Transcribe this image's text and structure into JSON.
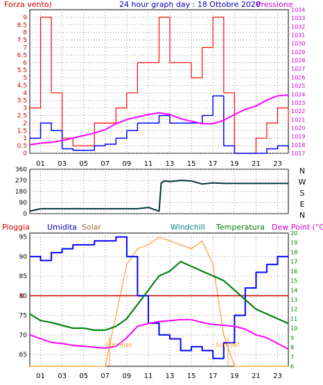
{
  "header": {
    "left_label": "Forza vento)",
    "title": "24 hour graph day : 18 Ottobre 2020",
    "right_label": "Pressione"
  },
  "colors": {
    "wind": "#ff0000",
    "wind_avg": "#0000ff",
    "pressure": "#ff00ff",
    "direction": "#003333",
    "humidity": "#0000ff",
    "solar": "#ff9933",
    "windchill": "#008080",
    "temperature": "#008000",
    "dewpoint": "#ff00ff",
    "rain": "#cc0000",
    "frame": "#000000",
    "grid": "#888888",
    "left_axis": "#cc0000",
    "right_axis_top": "#cc00cc",
    "right_axis_bottom": "#008000",
    "sun_label": "#ff9933"
  },
  "x_ticks": [
    "01",
    "03",
    "05",
    "07",
    "09",
    "11",
    "13",
    "15",
    "17",
    "19",
    "21",
    "23"
  ],
  "panel2": {
    "y_ticks": [
      "360",
      "270",
      "180",
      "90",
      "0"
    ],
    "compass": [
      "N",
      "W",
      "S",
      "E",
      "N"
    ]
  },
  "legend": {
    "rain": "Pioggia",
    "humidity": "Umidita",
    "solar": "Solar",
    "windchill": "Windchill",
    "temperature": "Temperatura",
    "dewpoint": "Dew Point (°C)"
  },
  "annotations": {
    "sunrise": "Sun Rise",
    "sunset": "Sun Set"
  },
  "chart_data": [
    {
      "type": "line",
      "title": "24 hour graph day : 18 Ottobre 2020",
      "ylabel_left": "Forza vento)",
      "ylabel_right": "Pressione",
      "x_hours": [
        0,
        1,
        2,
        3,
        4,
        5,
        6,
        7,
        8,
        9,
        10,
        11,
        12,
        13,
        14,
        15,
        16,
        17,
        18,
        19,
        20,
        21,
        22,
        23,
        24
      ],
      "ylim_left": [
        0,
        9.5
      ],
      "yticks_left": [
        "0",
        "0.5",
        "1",
        "1.5",
        "2",
        "2.5",
        "3",
        "3.5",
        "4",
        "4.5",
        "5",
        "5.5",
        "6",
        "6.5",
        "7",
        "7.5",
        "8",
        "8.5",
        "9"
      ],
      "ylim_right": [
        1017,
        1034
      ],
      "yticks_right": [
        "1017",
        "1017.5",
        "1018",
        "1018.5",
        "1019",
        "1019.5",
        "1020",
        "1020.5",
        "1021",
        "1021.5",
        "1022",
        "1022.5",
        "1023",
        "1023.5",
        "1024",
        "1024.5",
        "1025",
        "1025.5",
        "1026",
        "1026.5",
        "1027",
        "1027.5",
        "1028",
        "1028.5",
        "1029",
        "1029.5",
        "1030",
        "1030.5",
        "1031",
        "1031.5",
        "1032",
        "1032.5",
        "1033",
        "1033.5",
        "1034"
      ],
      "series": [
        {
          "name": "Forza vento)",
          "values": [
            3,
            9,
            4,
            1,
            0.5,
            0.5,
            2,
            2,
            3,
            4,
            6,
            6,
            9,
            6,
            6,
            5,
            7,
            9,
            4,
            0,
            0,
            1,
            2,
            3,
            2
          ]
        },
        {
          "values": [
            1,
            2,
            1.5,
            0.3,
            0.2,
            0.2,
            0.5,
            0.6,
            1,
            1.5,
            2,
            2,
            2.5,
            2,
            2,
            2,
            2.5,
            3.8,
            0.5,
            0,
            0,
            0,
            0.3,
            0.5,
            0.3
          ]
        },
        {
          "name": "Pressione",
          "values": [
            1018,
            1018.2,
            1018.3,
            1018.5,
            1018.8,
            1019.1,
            1019.4,
            1019.8,
            1020.5,
            1021,
            1021.3,
            1021.6,
            1021.8,
            1021.6,
            1021.1,
            1020.8,
            1020.5,
            1020.5,
            1020.9,
            1021.6,
            1022.2,
            1022.6,
            1023.3,
            1023.8,
            1023.9
          ]
        }
      ]
    },
    {
      "type": "line",
      "ylabel_right": "N W S E N",
      "ylim": [
        0,
        360
      ],
      "yticks": [
        "360",
        "270",
        "180",
        "90",
        "0"
      ],
      "x_hours": [
        0,
        1,
        2,
        3,
        4,
        5,
        6,
        7,
        8,
        9,
        10,
        11,
        12,
        12.2,
        12.5,
        13,
        14,
        15,
        16,
        17,
        18,
        19,
        20,
        21,
        22,
        23,
        24
      ],
      "series": [
        {
          "values": [
            20,
            40,
            40,
            40,
            40,
            40,
            40,
            40,
            40,
            40,
            40,
            50,
            20,
            250,
            265,
            260,
            270,
            265,
            240,
            250,
            245,
            245,
            245,
            245,
            245,
            245,
            245
          ]
        }
      ]
    },
    {
      "type": "line",
      "ylabel_left": "Pioggia",
      "ylim_left": [
        62,
        96
      ],
      "yticks_left": [
        "65",
        "70",
        "75",
        "80",
        "85",
        "90",
        "95"
      ],
      "ylim_right": [
        6,
        20
      ],
      "yticks_right": [
        "6",
        "7",
        "8",
        "9",
        "10",
        "11",
        "12",
        "13",
        "14",
        "15",
        "16",
        "17",
        "18",
        "19",
        "20"
      ],
      "x_hours": [
        0,
        1,
        2,
        3,
        4,
        5,
        6,
        7,
        8,
        9,
        10,
        11,
        12,
        13,
        14,
        15,
        16,
        17,
        18,
        19,
        20,
        21,
        22,
        23,
        24
      ],
      "series": [
        {
          "name": "Umidita",
          "axis": "left",
          "values": [
            90,
            89,
            91,
            92,
            93,
            93,
            94,
            94,
            95,
            90,
            80,
            73,
            70,
            69,
            66,
            67,
            66,
            64,
            68,
            75,
            82,
            86,
            88,
            90,
            90
          ]
        },
        {
          "name": "Solar",
          "axis": "left",
          "values": [
            62,
            62,
            62,
            62,
            62,
            62,
            62,
            62,
            75,
            88,
            92,
            93,
            95,
            94,
            93,
            92,
            94,
            88,
            70,
            62,
            62,
            62,
            62,
            62,
            62
          ]
        },
        {
          "name": "Windchill",
          "axis": "right",
          "values": [
            11.5,
            10.8,
            10.6,
            10.3,
            10,
            10,
            9.8,
            9.8,
            10.2,
            11,
            12.5,
            14,
            15.5,
            16,
            17,
            16.5,
            16,
            15.5,
            15,
            14,
            13,
            12,
            11.5,
            11,
            10.5
          ]
        },
        {
          "name": "Temperatura",
          "axis": "right",
          "values": [
            11.5,
            10.8,
            10.6,
            10.3,
            10,
            10,
            9.8,
            9.8,
            10.2,
            11,
            12.5,
            14,
            15.5,
            16,
            17,
            16.5,
            16,
            15.5,
            15,
            14,
            13,
            12,
            11.5,
            11,
            10.5
          ]
        },
        {
          "name": "Dew Point (°C)",
          "axis": "right",
          "values": [
            9.3,
            8.9,
            8.5,
            8.4,
            8.2,
            8.1,
            8,
            7.9,
            8.1,
            9,
            10.2,
            10.5,
            10.7,
            10.8,
            10.9,
            10.9,
            10.6,
            10.4,
            10.3,
            10.2,
            9.9,
            9.3,
            9,
            8.4,
            7.8
          ]
        },
        {
          "name": "Pioggia",
          "axis": "left",
          "values": [
            80,
            80,
            80,
            80,
            80,
            80,
            80,
            80,
            80,
            80,
            80,
            80,
            80,
            80,
            80,
            80,
            80,
            80,
            80,
            80,
            80,
            80,
            80,
            80,
            80
          ]
        }
      ]
    }
  ]
}
